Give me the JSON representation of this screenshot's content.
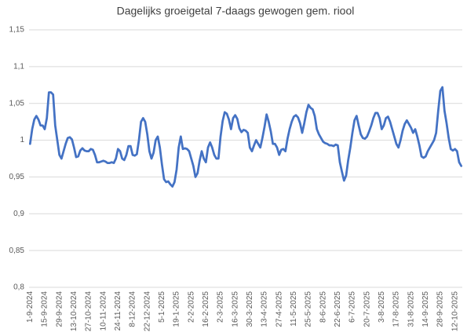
{
  "chart_data": {
    "type": "line",
    "title": "Dagelijks groeigetal 7-daags gewogen gem. riool",
    "categories": [
      "1-9-2024",
      null,
      null,
      null,
      null,
      null,
      null,
      "15-9-2024",
      null,
      null,
      null,
      null,
      null,
      null,
      "29-9-2024",
      null,
      null,
      null,
      null,
      null,
      null,
      "13-10-2024",
      null,
      null,
      null,
      null,
      null,
      null,
      "27-10-2024",
      null,
      null,
      null,
      null,
      null,
      null,
      "10-11-2024",
      null,
      null,
      null,
      null,
      null,
      null,
      "24-11-2024",
      null,
      null,
      null,
      null,
      null,
      null,
      "8-12-2024",
      null,
      null,
      null,
      null,
      null,
      null,
      "22-12-2024",
      null,
      null,
      null,
      null,
      null,
      null,
      "5-1-2025",
      null,
      null,
      null,
      null,
      null,
      null,
      "19-1-2025",
      null,
      null,
      null,
      null,
      null,
      null,
      "2-2-2025",
      null,
      null,
      null,
      null,
      null,
      null,
      "16-2-2025",
      null,
      null,
      null,
      null,
      null,
      null,
      "2-3-2025",
      null,
      null,
      null,
      null,
      null,
      null,
      "16-3-2025",
      null,
      null,
      null,
      null,
      null,
      null,
      "30-3-2025",
      null,
      null,
      null,
      null,
      null,
      null,
      "13-4-2025",
      null,
      null,
      null,
      null,
      null,
      null,
      "27-4-2025",
      null,
      null,
      null,
      null,
      null,
      null,
      "11-5-2025",
      null,
      null,
      null,
      null,
      null,
      null,
      "25-5-2025",
      null,
      null,
      null,
      null,
      null,
      null,
      "8-6-2025",
      null,
      null,
      null,
      null,
      null,
      null,
      "22-6-2025",
      null,
      null,
      null,
      null,
      null,
      null,
      "6-7-2025",
      null,
      null,
      null,
      null,
      null,
      null,
      "20-7-2025",
      null,
      null,
      null,
      null,
      null,
      null,
      "3-8-2025",
      null,
      null,
      null,
      null,
      null,
      null,
      "17-8-2025",
      null,
      null,
      null,
      null,
      null,
      null,
      "31-8-2025",
      null,
      null,
      null,
      null,
      null,
      null,
      "14-9-2025",
      null,
      null,
      null,
      null,
      null,
      null,
      "28-9-2025",
      null,
      null,
      null,
      null,
      null,
      null,
      "12-10-2025",
      null,
      null,
      null
    ],
    "values": [
      0.995,
      1.015,
      1.028,
      1.033,
      1.028,
      1.02,
      1.02,
      1.015,
      1.03,
      1.065,
      1.065,
      1.062,
      1.02,
      1.0,
      0.98,
      0.975,
      0.985,
      0.995,
      1.003,
      1.004,
      1.001,
      0.99,
      0.977,
      0.978,
      0.986,
      0.989,
      0.986,
      0.985,
      0.985,
      0.988,
      0.987,
      0.98,
      0.97,
      0.97,
      0.971,
      0.972,
      0.971,
      0.969,
      0.969,
      0.97,
      0.969,
      0.975,
      0.988,
      0.985,
      0.975,
      0.973,
      0.98,
      0.992,
      0.992,
      0.98,
      0.979,
      0.981,
      1.0,
      1.025,
      1.03,
      1.025,
      1.008,
      0.985,
      0.975,
      0.983,
      1.0,
      1.005,
      0.99,
      0.967,
      0.947,
      0.943,
      0.944,
      0.94,
      0.937,
      0.943,
      0.96,
      0.99,
      1.005,
      0.988,
      0.989,
      0.988,
      0.985,
      0.975,
      0.965,
      0.95,
      0.955,
      0.972,
      0.985,
      0.975,
      0.97,
      0.99,
      0.997,
      0.99,
      0.98,
      0.975,
      0.975,
      1.005,
      1.026,
      1.038,
      1.036,
      1.028,
      1.015,
      1.03,
      1.034,
      1.029,
      1.016,
      1.011,
      1.014,
      1.013,
      1.01,
      0.99,
      0.985,
      0.993,
      1.0,
      0.995,
      0.99,
      1.003,
      1.018,
      1.035,
      1.025,
      1.012,
      0.995,
      0.995,
      0.99,
      0.98,
      0.987,
      0.988,
      0.985,
      1.002,
      1.015,
      1.025,
      1.032,
      1.034,
      1.031,
      1.023,
      1.01,
      1.023,
      1.038,
      1.048,
      1.044,
      1.042,
      1.033,
      1.015,
      1.008,
      1.003,
      0.998,
      0.996,
      0.995,
      0.993,
      0.993,
      0.992,
      0.994,
      0.993,
      0.97,
      0.957,
      0.945,
      0.952,
      0.973,
      0.99,
      1.01,
      1.027,
      1.033,
      1.02,
      1.008,
      1.003,
      1.002,
      1.005,
      1.012,
      1.02,
      1.03,
      1.037,
      1.037,
      1.03,
      1.015,
      1.02,
      1.03,
      1.032,
      1.025,
      1.015,
      1.005,
      0.995,
      0.99,
      1.0,
      1.013,
      1.022,
      1.027,
      1.022,
      1.017,
      1.01,
      1.015,
      1.005,
      0.993,
      0.978,
      0.976,
      0.978,
      0.985,
      0.99,
      0.995,
      1.0,
      1.01,
      1.04,
      1.067,
      1.072,
      1.04,
      1.023,
      1.003,
      0.988,
      0.986,
      0.988,
      0.985,
      0.97,
      0.965
    ],
    "color": "#4472c4",
    "ylim": [
      0.8,
      1.15
    ],
    "yticks": [
      {
        "value": 0.8,
        "label": "0,8"
      },
      {
        "value": 0.85,
        "label": "0,85"
      },
      {
        "value": 0.9,
        "label": "0,9"
      },
      {
        "value": 0.95,
        "label": "0,95"
      },
      1,
      {
        "value": 1.05,
        "label": "1,05"
      },
      {
        "value": 1.1,
        "label": "1,1"
      },
      {
        "value": 1.15,
        "label": "1,15"
      }
    ],
    "grid": true
  }
}
